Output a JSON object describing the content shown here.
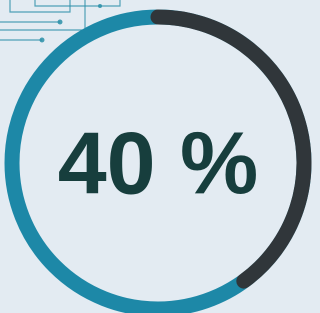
{
  "chart_data": {
    "type": "donut",
    "values": [
      40
    ],
    "value_labels": [
      "40 %"
    ],
    "range": [
      0,
      100
    ],
    "color": "#30363a",
    "track_color": "#1d88a7",
    "label_color": "#173e3d"
  }
}
